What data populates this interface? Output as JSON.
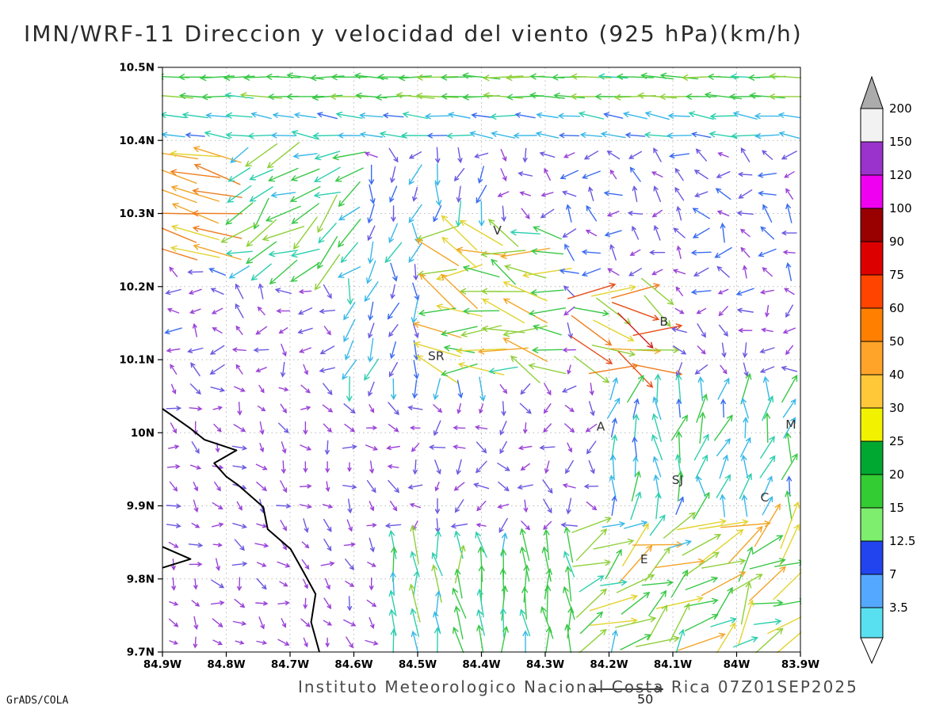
{
  "page": {
    "background": "#ffffff"
  },
  "title": "IMN/WRF-11 Direccion y velocidad del viento (925 hPa)(km/h)",
  "footer": {
    "institute": "Instituto Meteorologico Nacional Costa Rica 07Z01SEP2025",
    "ref_vector_label": "50",
    "credit": "GrADS/COLA"
  },
  "chart_data": {
    "type": "scatter",
    "subtype": "wind-vector-field (quiver map, colored by speed)",
    "title": "IMN/WRF-11 Direccion y velocidad del viento (925 hPa)(km/h)",
    "pressure_level": "925 hPa",
    "units": "km/h",
    "valid_time": "07Z01SEP2025",
    "x_axis": {
      "ticks": [
        "84.9W",
        "84.8W",
        "84.7W",
        "84.6W",
        "84.5W",
        "84.4W",
        "84.3W",
        "84.2W",
        "84.1W",
        "84W",
        "83.9W"
      ],
      "range": [
        84.9,
        83.9
      ],
      "unit": "deg W"
    },
    "y_axis": {
      "ticks": [
        "10.5N",
        "10.4N",
        "10.3N",
        "10.2N",
        "10.1N",
        "10N",
        "9.9N",
        "9.8N",
        "9.7N"
      ],
      "range": [
        10.5,
        9.7
      ],
      "unit": "deg N"
    },
    "grid": {
      "cols": 29,
      "rows": 30,
      "gridlines": "dotted"
    },
    "reference_vector": {
      "value": 50
    },
    "colorbar": {
      "boundary_labels": [
        "200",
        "150",
        "120",
        "100",
        "90",
        "75",
        "60",
        "50",
        "40",
        "30",
        "25",
        "20",
        "15",
        "12.5",
        "7",
        "3.5"
      ],
      "band_colors": [
        "#f2f2f2",
        "#9933cc",
        "#f000f0",
        "#990000",
        "#dd0000",
        "#ff4400",
        "#ff7f00",
        "#ffa428",
        "#ffc838",
        "#f2f200",
        "#00a832",
        "#33cc33",
        "#7dee6e",
        "#2244ee",
        "#55a8ff",
        "#58e0f0"
      ],
      "above_max_color": "#ababab",
      "below_min_color": "#ffffff"
    },
    "stations": [
      {
        "label": "V",
        "u": 0.525,
        "v": 0.286
      },
      {
        "label": "B",
        "u": 0.786,
        "v": 0.442
      },
      {
        "label": "SR",
        "u": 0.429,
        "v": 0.501
      },
      {
        "label": "A",
        "u": 0.687,
        "v": 0.621
      },
      {
        "label": "SJ",
        "u": 0.8075,
        "v": 0.713
      },
      {
        "label": "C",
        "u": 0.944,
        "v": 0.7425
      },
      {
        "label": "E",
        "u": 0.755,
        "v": 0.848
      },
      {
        "label": "M",
        "u": 0.985,
        "v": 0.618
      }
    ],
    "coastline": [
      [
        [
          0,
          0.584
        ],
        [
          0.043,
          0.617
        ],
        [
          0.066,
          0.637
        ],
        [
          0.116,
          0.655
        ],
        [
          0.081,
          0.677
        ],
        [
          0.1,
          0.7
        ],
        [
          0.118,
          0.714
        ],
        [
          0.158,
          0.752
        ],
        [
          0.165,
          0.79
        ],
        [
          0.201,
          0.824
        ],
        [
          0.221,
          0.863
        ],
        [
          0.24,
          0.901
        ],
        [
          0.233,
          0.949
        ],
        [
          0.246,
          1.0
        ]
      ],
      [
        [
          0,
          0.82
        ],
        [
          0.044,
          0.841
        ],
        [
          0,
          0.856
        ]
      ]
    ],
    "flow_regions": [
      {
        "name": "background-central-light",
        "u": [
          0,
          1
        ],
        "v": [
          0,
          1
        ],
        "dir": 115,
        "jd": 85,
        "spd": 7,
        "js": 3
      },
      {
        "name": "lower-left-light",
        "u": [
          0,
          0.33
        ],
        "v": [
          0.52,
          1
        ],
        "dir": 40,
        "jd": 55,
        "spd": 6,
        "js": 2.5
      },
      {
        "name": "mid-left-light",
        "u": [
          0,
          0.16
        ],
        "v": [
          0.34,
          0.52
        ],
        "dir": 200,
        "jd": 60,
        "spd": 8,
        "js": 3
      },
      {
        "name": "upper-right-light",
        "u": [
          0.58,
          1
        ],
        "v": [
          0.15,
          0.4
        ],
        "dir": 205,
        "jd": 60,
        "spd": 9,
        "js": 4
      },
      {
        "name": "central-northerly",
        "u": [
          0.28,
          0.5
        ],
        "v": [
          0.18,
          0.56
        ],
        "dir": 100,
        "jd": 30,
        "spd": 13,
        "js": 5
      },
      {
        "name": "upper-left-diagonal",
        "u": [
          0.1,
          0.3
        ],
        "v": [
          0.13,
          0.38
        ],
        "dir": 145,
        "jd": 30,
        "spd": 24,
        "js": 9
      },
      {
        "name": "left-edge-strong-easterly",
        "u": [
          0,
          0.105
        ],
        "v": [
          0.15,
          0.34
        ],
        "dir": 192,
        "jd": 12,
        "spd": 46,
        "js": 12
      },
      {
        "name": "mid-yellow-cluster",
        "u": [
          0.42,
          0.63
        ],
        "v": [
          0.27,
          0.52
        ],
        "dir": 195,
        "jd": 35,
        "spd": 33,
        "js": 13
      },
      {
        "name": "b-strong-cluster",
        "u": [
          0.64,
          0.79
        ],
        "v": [
          0.38,
          0.54
        ],
        "dir": 15,
        "jd": 35,
        "spd": 48,
        "js": 26
      },
      {
        "name": "right-mid-southerly",
        "u": [
          0.7,
          1
        ],
        "v": [
          0.54,
          0.78
        ],
        "dir": 278,
        "jd": 30,
        "spd": 17,
        "js": 6
      },
      {
        "name": "bottom-center-southerly",
        "u": [
          0.33,
          0.64
        ],
        "v": [
          0.8,
          1
        ],
        "dir": 265,
        "jd": 20,
        "spd": 22,
        "js": 7
      },
      {
        "name": "bottom-right-strong",
        "u": [
          0.64,
          1
        ],
        "v": [
          0.78,
          1
        ],
        "dir": 320,
        "jd": 40,
        "spd": 30,
        "js": 15
      },
      {
        "name": "upper-band-moderate",
        "u": [
          0,
          1
        ],
        "v": [
          0.065,
          0.145
        ],
        "dir": 186,
        "jd": 10,
        "spd": 16,
        "js": 4
      },
      {
        "name": "top-band-strong-easterly",
        "u": [
          0,
          1
        ],
        "v": [
          0,
          0.065
        ],
        "dir": 181,
        "jd": 6,
        "spd": 26,
        "js": 6
      }
    ],
    "arrow_palette": [
      {
        "max": 7.5,
        "color": "#9a43d8"
      },
      {
        "max": 10.5,
        "color": "#6a5ae0"
      },
      {
        "max": 13.5,
        "color": "#3a6cf0"
      },
      {
        "max": 17,
        "color": "#38b8e8"
      },
      {
        "max": 21,
        "color": "#2ecfae"
      },
      {
        "max": 28,
        "color": "#38c846"
      },
      {
        "max": 34,
        "color": "#8fd03a"
      },
      {
        "max": 40,
        "color": "#e3d32e"
      },
      {
        "max": 50,
        "color": "#f2a528"
      },
      {
        "max": 62,
        "color": "#ef7d1e"
      },
      {
        "max": 72,
        "color": "#e64e18"
      },
      {
        "max": 999,
        "color": "#d32020"
      }
    ]
  }
}
